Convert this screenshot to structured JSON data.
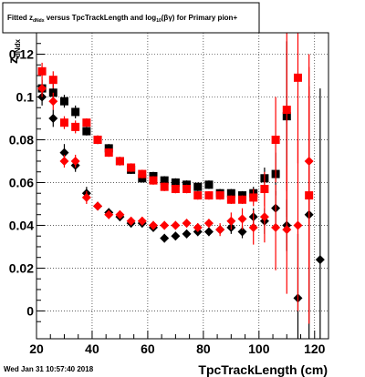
{
  "footer_text": "Wed Jan 31 10:57:40 2018",
  "title": {
    "prefix": "Fitted  z",
    "prefix_sub": "dNdx",
    "mid": " versus TpcTrackLength and log",
    "mid_sub": "10",
    "suffix": "(βγ) for Primary pion+"
  },
  "colors": {
    "black_series": "#000000",
    "red_series": "#ff0000",
    "grid": "#000000",
    "frame": "#000000"
  },
  "chart_data": {
    "type": "scatter",
    "xlabel": "TpcTrackLength (cm)",
    "ylabel": "z",
    "ylabel_sub": "dNdx",
    "xlim": [
      20,
      125
    ],
    "ylim": [
      -0.013,
      0.13
    ],
    "x_ticks": [
      20,
      40,
      60,
      80,
      100,
      120
    ],
    "x_tick_labels": [
      "20",
      "40",
      "60",
      "80",
      "100",
      "120"
    ],
    "y_ticks": [
      0,
      0.02,
      0.04,
      0.06,
      0.08,
      0.1,
      0.12
    ],
    "y_tick_labels": [
      "0",
      "0.02",
      "0.04",
      "0.06",
      "0.08",
      "0.1",
      "0.12"
    ],
    "grid": true,
    "series": [
      {
        "color": "black",
        "marker": "square",
        "points": [
          {
            "x": 22,
            "y": 0.104,
            "err": 0.004
          },
          {
            "x": 26,
            "y": 0.102,
            "err": 0.004
          },
          {
            "x": 30,
            "y": 0.098,
            "err": 0.003
          },
          {
            "x": 34,
            "y": 0.093,
            "err": 0.003
          },
          {
            "x": 38,
            "y": 0.084,
            "err": 0.002
          },
          {
            "x": 42,
            "y": 0.08,
            "err": 0.002
          },
          {
            "x": 46,
            "y": 0.076,
            "err": 0.002
          },
          {
            "x": 50,
            "y": 0.07,
            "err": 0.002
          },
          {
            "x": 54,
            "y": 0.066,
            "err": 0.002
          },
          {
            "x": 58,
            "y": 0.062,
            "err": 0.002
          },
          {
            "x": 62,
            "y": 0.063,
            "err": 0.002
          },
          {
            "x": 66,
            "y": 0.061,
            "err": 0.002
          },
          {
            "x": 70,
            "y": 0.06,
            "err": 0.002
          },
          {
            "x": 74,
            "y": 0.059,
            "err": 0.002
          },
          {
            "x": 78,
            "y": 0.058,
            "err": 0.002
          },
          {
            "x": 82,
            "y": 0.059,
            "err": 0.002
          },
          {
            "x": 86,
            "y": 0.055,
            "err": 0.002
          },
          {
            "x": 90,
            "y": 0.055,
            "err": 0.002
          },
          {
            "x": 94,
            "y": 0.054,
            "err": 0.002
          },
          {
            "x": 98,
            "y": 0.055,
            "err": 0.003
          },
          {
            "x": 102,
            "y": 0.062,
            "err": 0.005
          },
          {
            "x": 106,
            "y": 0.064,
            "err": 0.01
          },
          {
            "x": 110,
            "y": 0.091,
            "err": 0.035
          }
        ]
      },
      {
        "color": "red",
        "marker": "square",
        "points": [
          {
            "x": 22,
            "y": 0.112,
            "err": 0.004
          },
          {
            "x": 26,
            "y": 0.108,
            "err": 0.004
          },
          {
            "x": 30,
            "y": 0.088,
            "err": 0.003
          },
          {
            "x": 34,
            "y": 0.086,
            "err": 0.003
          },
          {
            "x": 38,
            "y": 0.088,
            "err": 0.002
          },
          {
            "x": 42,
            "y": 0.08,
            "err": 0.002
          },
          {
            "x": 46,
            "y": 0.074,
            "err": 0.002
          },
          {
            "x": 50,
            "y": 0.07,
            "err": 0.002
          },
          {
            "x": 54,
            "y": 0.067,
            "err": 0.002
          },
          {
            "x": 58,
            "y": 0.064,
            "err": 0.002
          },
          {
            "x": 62,
            "y": 0.061,
            "err": 0.002
          },
          {
            "x": 66,
            "y": 0.058,
            "err": 0.002
          },
          {
            "x": 70,
            "y": 0.057,
            "err": 0.002
          },
          {
            "x": 74,
            "y": 0.057,
            "err": 0.002
          },
          {
            "x": 78,
            "y": 0.054,
            "err": 0.002
          },
          {
            "x": 82,
            "y": 0.054,
            "err": 0.002
          },
          {
            "x": 86,
            "y": 0.054,
            "err": 0.002
          },
          {
            "x": 90,
            "y": 0.052,
            "err": 0.002
          },
          {
            "x": 94,
            "y": 0.052,
            "err": 0.002
          },
          {
            "x": 98,
            "y": 0.053,
            "err": 0.004
          },
          {
            "x": 102,
            "y": 0.057,
            "err": 0.008
          },
          {
            "x": 106,
            "y": 0.08,
            "err": 0.02
          },
          {
            "x": 110,
            "y": 0.094,
            "err": 0.05
          },
          {
            "x": 114,
            "y": 0.109,
            "err": 0.04
          }
        ]
      },
      {
        "color": "black",
        "marker": "diamond",
        "points": [
          {
            "x": 22,
            "y": 0.1,
            "err": 0.004
          },
          {
            "x": 26,
            "y": 0.09,
            "err": 0.004
          },
          {
            "x": 30,
            "y": 0.074,
            "err": 0.004
          },
          {
            "x": 34,
            "y": 0.068,
            "err": 0.003
          },
          {
            "x": 38,
            "y": 0.055,
            "err": 0.003
          },
          {
            "x": 42,
            "y": 0.049,
            "err": 0.002
          },
          {
            "x": 46,
            "y": 0.046,
            "err": 0.002
          },
          {
            "x": 50,
            "y": 0.044,
            "err": 0.002
          },
          {
            "x": 54,
            "y": 0.041,
            "err": 0.002
          },
          {
            "x": 58,
            "y": 0.041,
            "err": 0.002
          },
          {
            "x": 62,
            "y": 0.039,
            "err": 0.002
          },
          {
            "x": 66,
            "y": 0.034,
            "err": 0.002
          },
          {
            "x": 70,
            "y": 0.035,
            "err": 0.002
          },
          {
            "x": 74,
            "y": 0.036,
            "err": 0.002
          },
          {
            "x": 78,
            "y": 0.037,
            "err": 0.002
          },
          {
            "x": 82,
            "y": 0.037,
            "err": 0.002
          },
          {
            "x": 86,
            "y": 0.038,
            "err": 0.002
          },
          {
            "x": 90,
            "y": 0.039,
            "err": 0.003
          },
          {
            "x": 94,
            "y": 0.037,
            "err": 0.003
          },
          {
            "x": 98,
            "y": 0.044,
            "err": 0.004
          },
          {
            "x": 102,
            "y": 0.042,
            "err": 0.006
          },
          {
            "x": 106,
            "y": 0.048,
            "err": 0.008
          },
          {
            "x": 110,
            "y": 0.04,
            "err": 0.012
          },
          {
            "x": 114,
            "y": 0.006,
            "err": 0.03
          },
          {
            "x": 118,
            "y": 0.045,
            "err": 0.06
          },
          {
            "x": 122,
            "y": 0.024,
            "err": 0.08
          }
        ]
      },
      {
        "color": "red",
        "marker": "diamond",
        "points": [
          {
            "x": 22,
            "y": 0.104,
            "err": 0.004
          },
          {
            "x": 26,
            "y": 0.098,
            "err": 0.004
          },
          {
            "x": 30,
            "y": 0.07,
            "err": 0.003
          },
          {
            "x": 34,
            "y": 0.07,
            "err": 0.003
          },
          {
            "x": 38,
            "y": 0.053,
            "err": 0.003
          },
          {
            "x": 42,
            "y": 0.049,
            "err": 0.002
          },
          {
            "x": 46,
            "y": 0.045,
            "err": 0.002
          },
          {
            "x": 50,
            "y": 0.045,
            "err": 0.002
          },
          {
            "x": 54,
            "y": 0.042,
            "err": 0.002
          },
          {
            "x": 58,
            "y": 0.042,
            "err": 0.002
          },
          {
            "x": 62,
            "y": 0.04,
            "err": 0.002
          },
          {
            "x": 66,
            "y": 0.04,
            "err": 0.002
          },
          {
            "x": 70,
            "y": 0.04,
            "err": 0.002
          },
          {
            "x": 74,
            "y": 0.041,
            "err": 0.002
          },
          {
            "x": 78,
            "y": 0.039,
            "err": 0.002
          },
          {
            "x": 82,
            "y": 0.041,
            "err": 0.002
          },
          {
            "x": 86,
            "y": 0.038,
            "err": 0.003
          },
          {
            "x": 90,
            "y": 0.042,
            "err": 0.004
          },
          {
            "x": 94,
            "y": 0.043,
            "err": 0.005
          },
          {
            "x": 98,
            "y": 0.039,
            "err": 0.008
          },
          {
            "x": 102,
            "y": 0.044,
            "err": 0.012
          },
          {
            "x": 106,
            "y": 0.039,
            "err": 0.02
          },
          {
            "x": 110,
            "y": 0.038,
            "err": 0.03
          },
          {
            "x": 114,
            "y": 0.04,
            "err": 0.04
          },
          {
            "x": 118,
            "y": 0.07,
            "err": 0.05
          }
        ]
      },
      {
        "color": "red",
        "marker": "square",
        "points": [
          {
            "x": 118,
            "y": 0.054,
            "err": 0.06
          }
        ]
      }
    ]
  }
}
